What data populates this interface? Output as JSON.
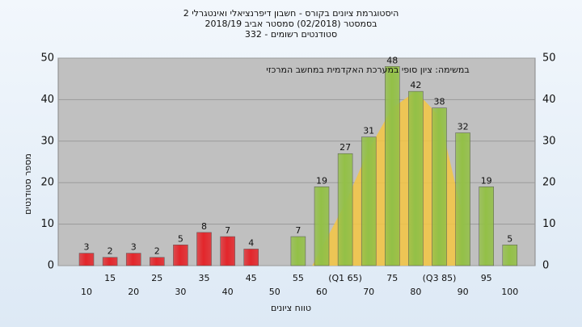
{
  "chart_data": {
    "type": "bar",
    "title": "היסטוגרמת ציונים בקורס - חשבון דיפרנציאלי ואינטגרלי 2",
    "subtitle": "בסמסטר  (02/2018)  סמסטר אביב 2018/19",
    "subtitle2": "סטודנטים רשומים - 332",
    "annotation": "במשימה: ציון סופי במערכת האקדמית במחשב המרכזי",
    "x_label": "טווח ציונים",
    "y_label": "מספר סטודנטים",
    "categories": [
      "10",
      "15",
      "20",
      "25",
      "30",
      "35",
      "40",
      "45",
      "50",
      "55",
      "60",
      "(Q1 65)",
      "70",
      "75",
      "80",
      "(Q3 85)",
      "90",
      "95",
      "100"
    ],
    "values": [
      3,
      2,
      3,
      2,
      5,
      8,
      7,
      4,
      null,
      7,
      19,
      27,
      31,
      48,
      42,
      38,
      32,
      19,
      5
    ],
    "colors": [
      "#e3262b",
      "#e3262b",
      "#e3262b",
      "#e3262b",
      "#e3262b",
      "#e3262b",
      "#e3262b",
      "#e3262b",
      "#e3262b",
      "#93c047",
      "#93c047",
      "#93c047",
      "#93c047",
      "#93c047",
      "#93c047",
      "#93c047",
      "#93c047",
      "#93c047",
      "#93c047"
    ],
    "curve": {
      "color": "#f4c542",
      "x": [
        58,
        65,
        70,
        75,
        80,
        85,
        90
      ],
      "values": [
        0,
        15,
        28,
        38,
        42,
        36,
        12
      ]
    },
    "ylim": [
      0,
      50
    ],
    "yticks": [
      0,
      10,
      20,
      30,
      40,
      50
    ],
    "grid": true
  }
}
